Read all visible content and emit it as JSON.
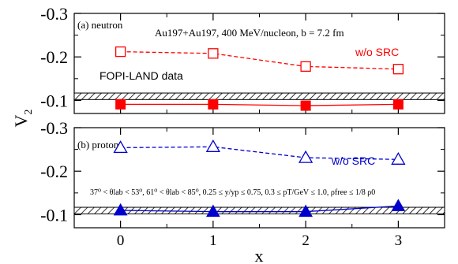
{
  "chart_data": [
    {
      "type": "line",
      "panel_label": "(a) neutron",
      "annotation": "Au197+Au197, 400 MeV/nucleon, b = 7.2 fm",
      "band_label": "FOPI-LAND data",
      "band_range": [
        -0.102,
        -0.117
      ],
      "x": [
        0,
        1,
        2,
        3
      ],
      "xlim": [
        -0.5,
        3.5
      ],
      "ylim": [
        -0.07,
        -0.3
      ],
      "yticks": [
        "-0.3",
        "-0.2",
        "-0.1"
      ],
      "ytick_values": [
        -0.3,
        -0.2,
        -0.1
      ],
      "series": [
        {
          "name": "w/o SRC",
          "values": [
            -0.212,
            -0.208,
            -0.178,
            -0.172
          ],
          "color": "#ff0000",
          "marker": "open-square",
          "line": "dashed"
        },
        {
          "name": "",
          "values": [
            -0.091,
            -0.091,
            -0.088,
            -0.091
          ],
          "color": "#ff0000",
          "marker": "filled-square",
          "line": "solid"
        }
      ]
    },
    {
      "type": "line",
      "panel_label": "(b) proton",
      "annotation": "37⁰ < θlab < 53⁰, 61⁰ < θlab < 85⁰, 0.25 ≤ y/yp ≤ 0.75,  0.3 ≤ pT/GeV ≤ 1.0, ρfree ≤ 1/8 ρ0",
      "band_label": "",
      "band_range": [
        -0.102,
        -0.117
      ],
      "x": [
        0,
        1,
        2,
        3
      ],
      "xlim": [
        -0.5,
        3.5
      ],
      "ylim": [
        -0.07,
        -0.3
      ],
      "yticks": [
        "-0.3",
        "-0.2",
        "-0.1"
      ],
      "ytick_values": [
        -0.3,
        -0.2,
        -0.1
      ],
      "series": [
        {
          "name": "w/o SRC",
          "values": [
            -0.254,
            -0.256,
            -0.231,
            -0.227
          ],
          "color": "#0000cc",
          "marker": "open-triangle",
          "line": "dashed"
        },
        {
          "name": "",
          "values": [
            -0.11,
            -0.107,
            -0.107,
            -0.12
          ],
          "color": "#0000cc",
          "marker": "filled-triangle",
          "line": "solid"
        }
      ]
    }
  ],
  "shared_axes": {
    "xlabel": "x",
    "ylabel": "V",
    "ylabel_sub": "2",
    "xticks": [
      "0",
      "1",
      "2",
      "3"
    ]
  }
}
